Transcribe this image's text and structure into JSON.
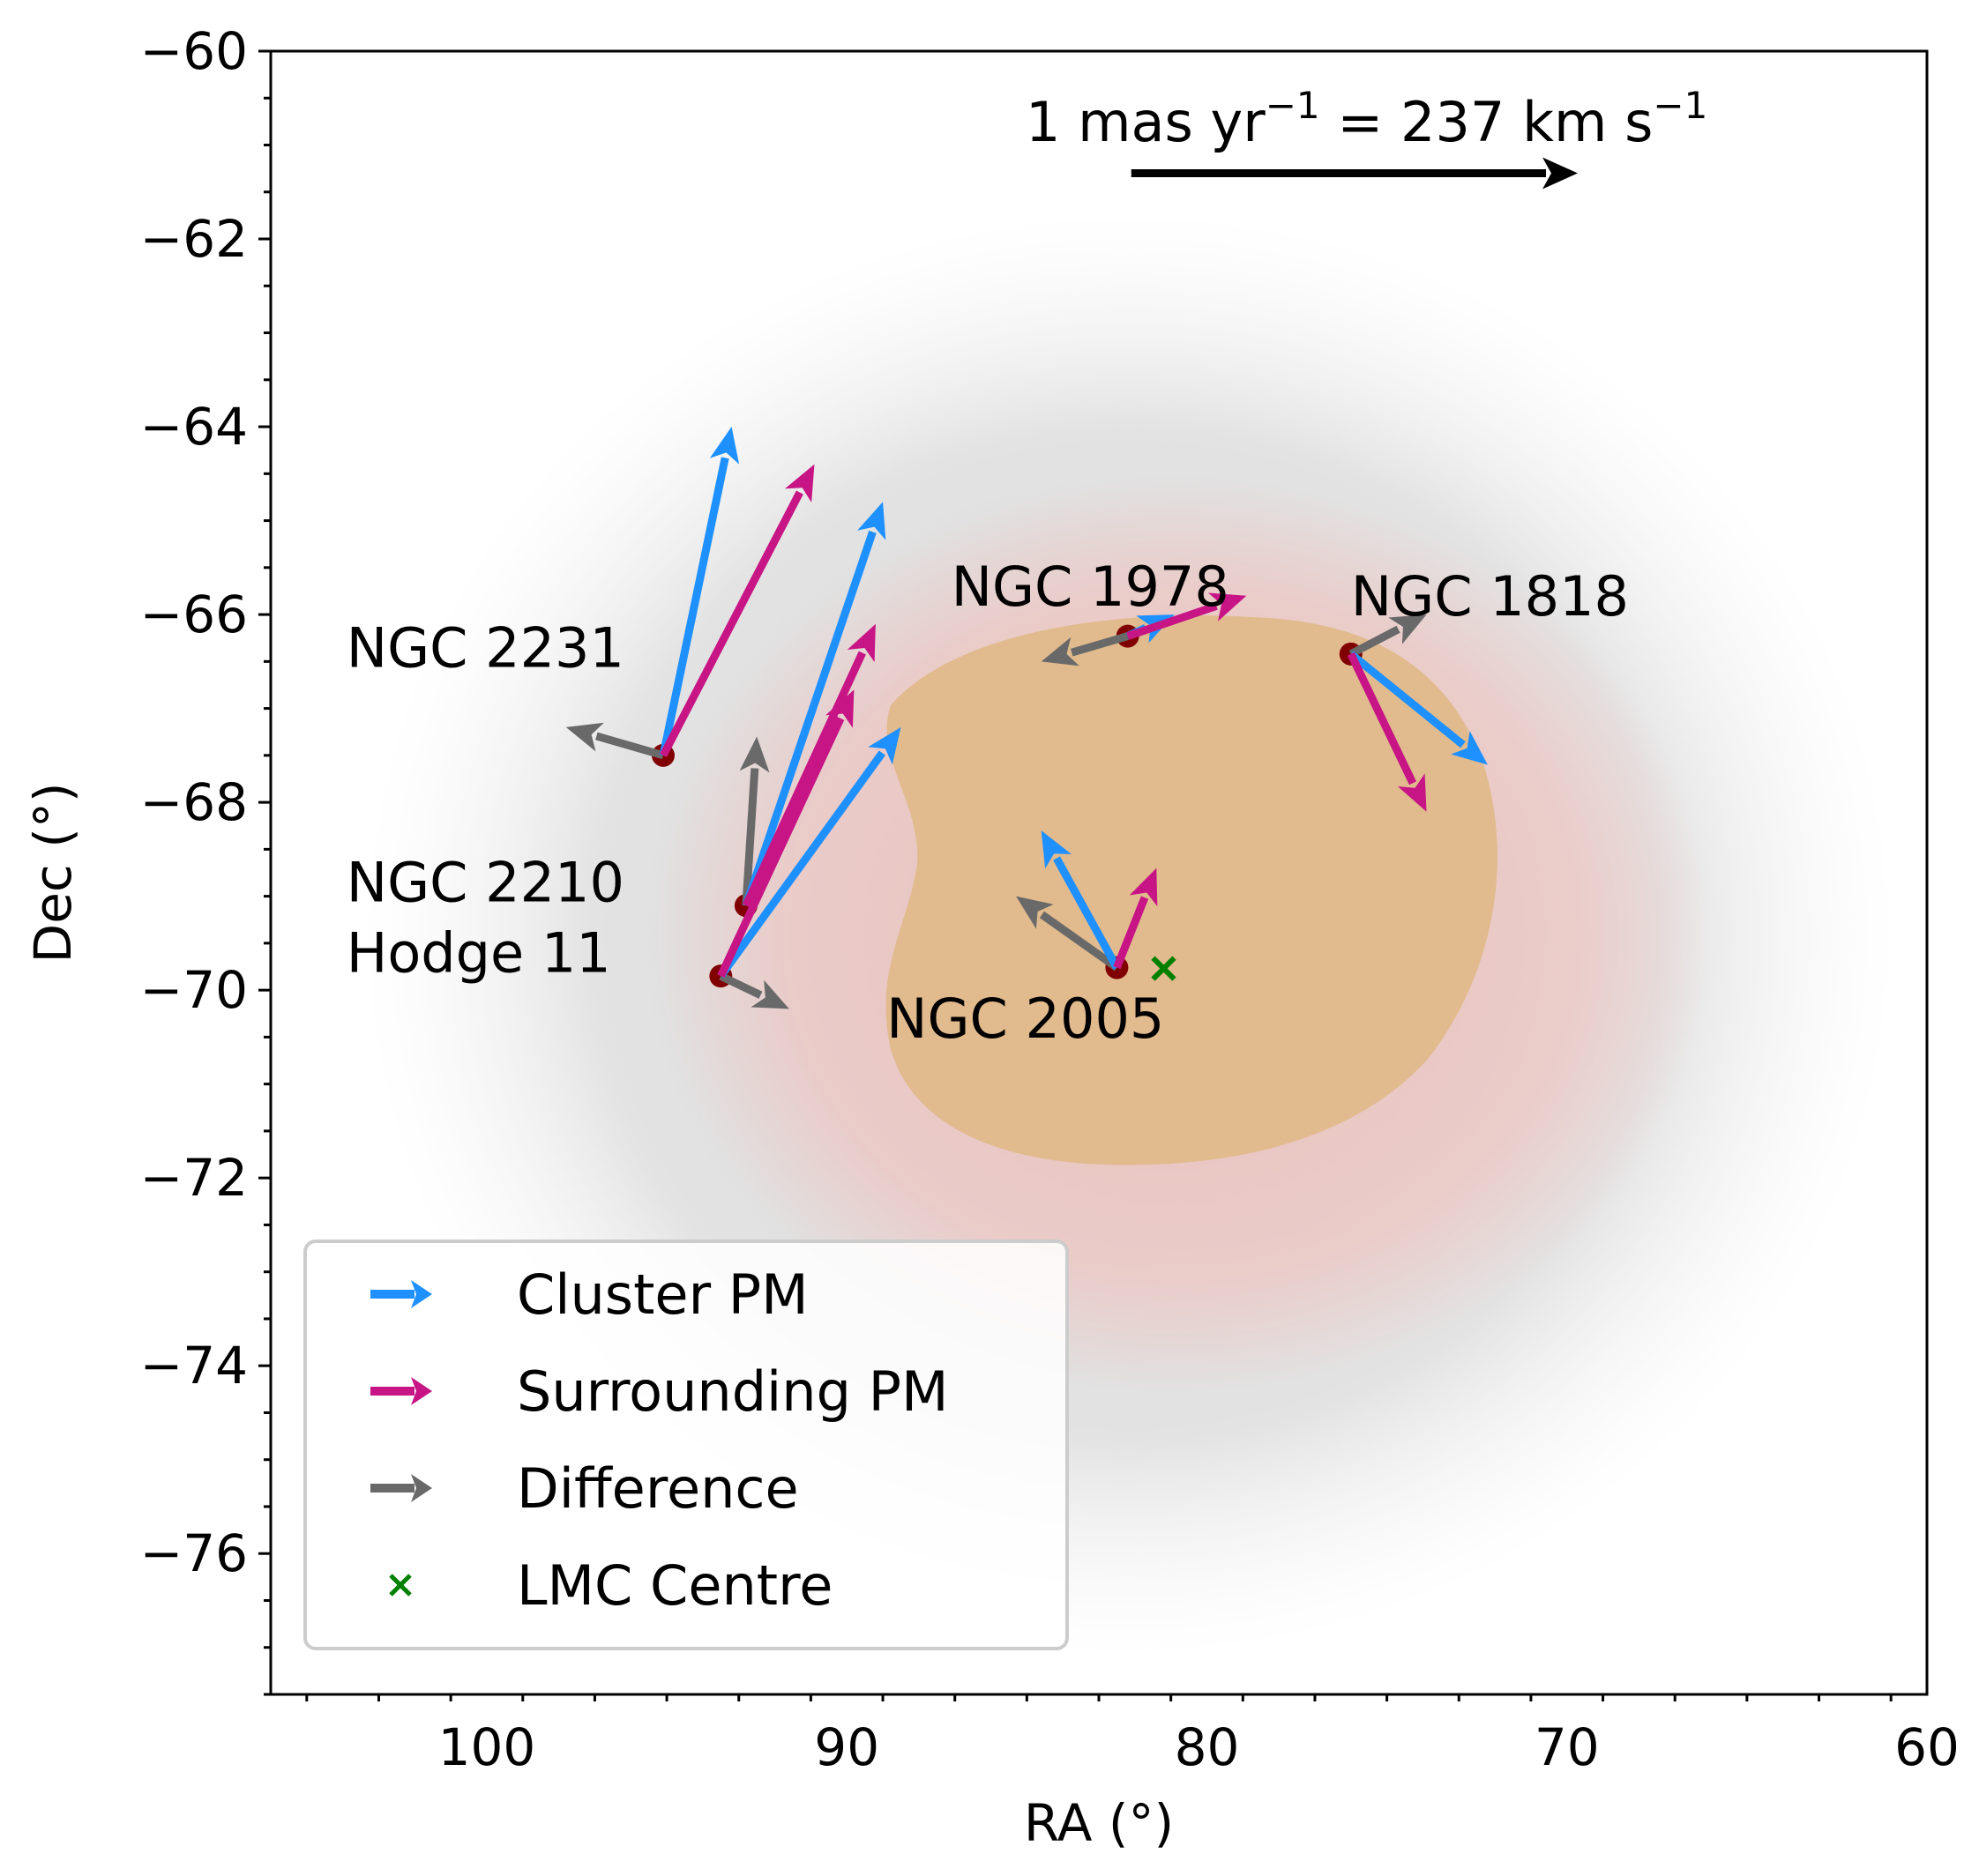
{
  "chart_data": {
    "type": "scatter",
    "title": "",
    "xlabel": "RA (°)",
    "ylabel": "Dec (°)",
    "xlim": [
      106,
      60
    ],
    "ylim": [
      -77.5,
      -60
    ],
    "x_ticks": [
      100,
      90,
      80,
      70,
      60
    ],
    "x_tick_labels": [
      "100",
      "90",
      "80",
      "70",
      "60"
    ],
    "y_ticks": [
      -60,
      -62,
      -64,
      -66,
      -68,
      -70,
      -72,
      -74,
      -76
    ],
    "y_tick_labels": [
      "−60",
      "−62",
      "−64",
      "−66",
      "−68",
      "−70",
      "−72",
      "−74",
      "−76"
    ],
    "grid": false,
    "colors": {
      "cluster_pm": "#1e90ff",
      "surrounding_pm": "#c71585",
      "difference": "#696969",
      "cluster_marker": "#800000",
      "lmc_centre": "#008000",
      "density_outer": "#d8d8d8",
      "density_mid": "#efc4c0",
      "density_core": "#e0b98a"
    },
    "scale_bar": {
      "label": "1 mas yr⁻¹ = 237 km s⁻¹",
      "label_parts": [
        "1 mas yr",
        "−1",
        " = 237 km s",
        "−1"
      ],
      "from": [
        82.1,
        -61.3
      ],
      "to": [
        69.7,
        -61.3
      ]
    },
    "clusters": [
      {
        "name": "NGC 2231",
        "ra": 95.1,
        "dec": -67.5,
        "cluster_pm_tip": [
          93.2,
          -64.0
        ],
        "surrounding_pm_tip": [
          90.9,
          -64.4
        ],
        "difference_tip": [
          97.8,
          -67.2
        ],
        "label_pos": [
          103.9,
          -66.35
        ]
      },
      {
        "name": "NGC 2210",
        "ra": 92.8,
        "dec": -69.1,
        "cluster_pm_tip": [
          89.0,
          -64.8
        ],
        "surrounding_pm_tip": [
          89.2,
          -66.1
        ],
        "difference_tip": [
          92.5,
          -67.3
        ],
        "label_pos": [
          103.9,
          -68.85
        ]
      },
      {
        "name": "Hodge 11",
        "ra": 93.5,
        "dec": -69.85,
        "cluster_pm_tip": [
          88.5,
          -67.2
        ],
        "surrounding_pm_tip": [
          89.8,
          -66.8
        ],
        "difference_tip": [
          91.6,
          -70.2
        ],
        "label_pos": [
          103.9,
          -69.6
        ]
      },
      {
        "name": "NGC 1978",
        "ra": 82.2,
        "dec": -66.23,
        "cluster_pm_tip": [
          80.9,
          -66.0
        ],
        "surrounding_pm_tip": [
          78.9,
          -65.8
        ],
        "difference_tip": [
          84.6,
          -66.5
        ],
        "label_pos": [
          87.1,
          -65.7
        ]
      },
      {
        "name": "NGC 1818",
        "ra": 76.0,
        "dec": -66.42,
        "cluster_pm_tip": [
          72.2,
          -67.6
        ],
        "surrounding_pm_tip": [
          73.9,
          -68.1
        ],
        "difference_tip": [
          73.9,
          -66.0
        ],
        "label_pos": [
          76.0,
          -65.8
        ]
      },
      {
        "name": "NGC 2005",
        "ra": 82.5,
        "dec": -69.76,
        "cluster_pm_tip": [
          84.6,
          -68.3
        ],
        "surrounding_pm_tip": [
          81.4,
          -68.7
        ],
        "difference_tip": [
          85.3,
          -69.0
        ],
        "label_pos": [
          88.9,
          -70.3
        ]
      }
    ],
    "lmc_centre": {
      "ra": 81.2,
      "dec": -69.77
    },
    "legend": {
      "position": "lower-left",
      "entries": [
        {
          "label": "Cluster PM",
          "marker": "arrow",
          "color_key": "cluster_pm"
        },
        {
          "label": "Surrounding PM",
          "marker": "arrow",
          "color_key": "surrounding_pm"
        },
        {
          "label": "Difference",
          "marker": "arrow",
          "color_key": "difference"
        },
        {
          "label": "LMC Centre",
          "marker": "x",
          "color_key": "lmc_centre"
        }
      ]
    }
  }
}
